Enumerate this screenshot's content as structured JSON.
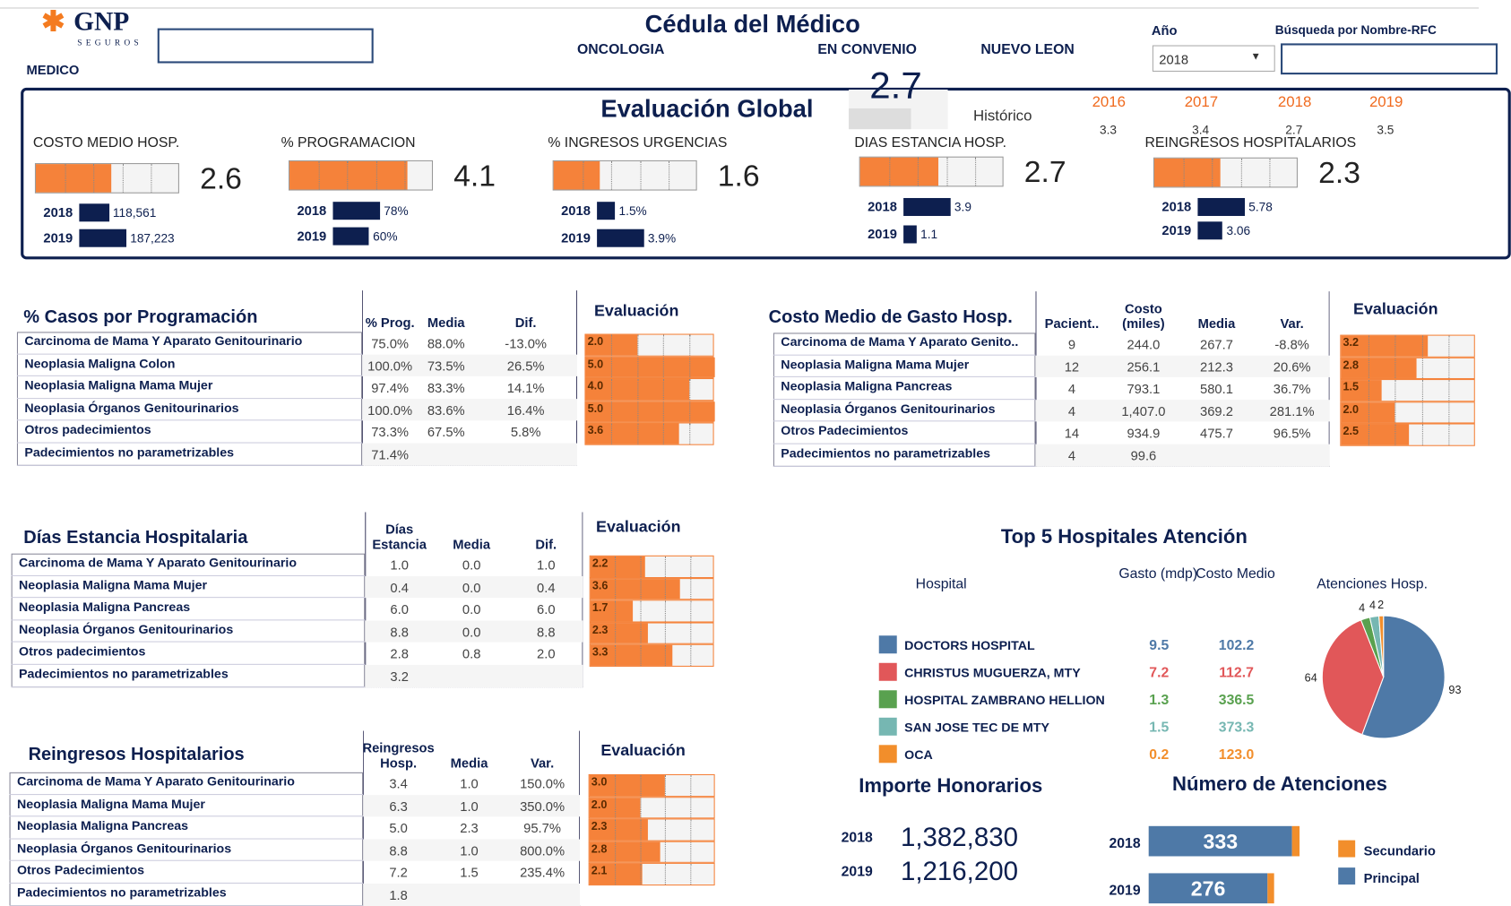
{
  "header": {
    "logo": "GNP",
    "logo_sub": "SEGUROS",
    "medico_label": "MEDICO",
    "title": "Cédula del Médico",
    "specialty": "ONCOLOGIA",
    "agreement": "EN CONVENIO",
    "state": "NUEVO LEON",
    "year_label": "Año",
    "year": "2018",
    "search_label": "Búsqueda por Nombre-RFC"
  },
  "global": {
    "title": "Evaluación Global",
    "score": 2.7,
    "history_label": "Histórico",
    "history": [
      {
        "year": "2016",
        "score": 3.3
      },
      {
        "year": "2017",
        "score": 3.4
      },
      {
        "year": "2018",
        "score": 2.7
      },
      {
        "year": "2019",
        "score": 3.5
      }
    ],
    "kpis": [
      {
        "name": "COSTO MEDIO HOSP.",
        "score": 2.6,
        "rows": [
          {
            "year": "2018",
            "value": {
              "value": 118561,
              "label": "118,561"
            }
          },
          {
            "year": "2019",
            "value": {
              "value": 187223,
              "label": "187,223"
            }
          }
        ]
      },
      {
        "name": "% PROGRAMACION",
        "score": 4.1,
        "rows": [
          {
            "year": "2018",
            "value": {
              "value": 78,
              "label": "78%"
            }
          },
          {
            "year": "2019",
            "value": {
              "value": 60,
              "label": "60%"
            }
          }
        ]
      },
      {
        "name": "% INGRESOS URGENCIAS",
        "score": 1.6,
        "rows": [
          {
            "year": "2018",
            "value": {
              "value": 1.5,
              "label": "1.5%"
            }
          },
          {
            "year": "2019",
            "value": {
              "value": 3.9,
              "label": "3.9%"
            }
          }
        ]
      },
      {
        "name": "DIAS ESTANCIA HOSP.",
        "score": 2.7,
        "rows": [
          {
            "year": "2018",
            "value": 3.9
          },
          {
            "year": "2019",
            "value": 1.1
          }
        ]
      },
      {
        "name": "REINGRESOS HOSPITALARIOS",
        "score": 2.3,
        "rows": [
          {
            "year": "2018",
            "value": 5.78
          },
          {
            "year": "2019",
            "value": 3.06
          }
        ]
      }
    ]
  },
  "tables": [
    {
      "title": "% Casos por Programación",
      "columns": [
        "% Prog.",
        "Media",
        "Dif."
      ],
      "eval_label": "Evaluación",
      "rows": [
        {
          "label": "Carcinoma de  Mama Y Aparato Genitourinario",
          "cells": [
            "75.0%",
            "88.0%",
            "-13.0%"
          ],
          "score": {
            "value": 2,
            "label": "2.0"
          }
        },
        {
          "label": "Neoplasia Maligna Colon",
          "cells": [
            "100.0%",
            "73.5%",
            "26.5%"
          ],
          "score": {
            "value": 5,
            "label": "5.0"
          }
        },
        {
          "label": "Neoplasia Maligna Mama Mujer",
          "cells": [
            "97.4%",
            "83.3%",
            "14.1%"
          ],
          "score": {
            "value": 4,
            "label": "4.0"
          }
        },
        {
          "label": "Neoplasia Órganos Genitourinarios",
          "cells": [
            "100.0%",
            "83.6%",
            "16.4%"
          ],
          "score": {
            "value": 5,
            "label": "5.0"
          }
        },
        {
          "label": "Otros padecimientos",
          "cells": [
            "73.3%",
            "67.5%",
            "5.8%"
          ],
          "score": 3.6
        },
        {
          "label": "Padecimientos no parametrizables",
          "cells": [
            "71.4%"
          ]
        }
      ]
    },
    {
      "title": "Costo Medio de Gasto Hosp.",
      "columns": [
        "Pacient..",
        "Costo (miles)",
        "Media",
        "Var."
      ],
      "eval_label": "Evaluación",
      "rows": [
        {
          "label": "Carcinoma de  Mama Y Aparato Genito..",
          "cells": [
            "9",
            "244.0",
            "267.7",
            "-8.8%"
          ],
          "score": 3.2
        },
        {
          "label": "Neoplasia Maligna Mama Mujer",
          "cells": [
            "12",
            "256.1",
            "212.3",
            "20.6%"
          ],
          "score": 2.8
        },
        {
          "label": "Neoplasia Maligna Pancreas",
          "cells": [
            "4",
            "793.1",
            "580.1",
            "36.7%"
          ],
          "score": 1.5
        },
        {
          "label": "Neoplasia Órganos Genitourinarios",
          "cells": [
            "4",
            "1,407.0",
            "369.2",
            "281.1%"
          ],
          "score": {
            "value": 2,
            "label": "2.0"
          }
        },
        {
          "label": "Otros Padecimientos",
          "cells": [
            "14",
            "934.9",
            "475.7",
            "96.5%"
          ],
          "score": 2.5
        },
        {
          "label": "Padecimientos no parametrizables",
          "cells": [
            "4",
            "99.6"
          ]
        }
      ]
    },
    {
      "title": "Días Estancia Hospitalaria",
      "columns": [
        "Días Estancia",
        "Media",
        "Dif."
      ],
      "eval_label": "Evaluación",
      "rows": [
        {
          "label": "Carcinoma de  Mama Y Aparato Genitourinario",
          "cells": [
            "1.0",
            "0.0",
            "1.0"
          ],
          "score": 2.2
        },
        {
          "label": "Neoplasia Maligna Mama Mujer",
          "cells": [
            "0.4",
            "0.0",
            "0.4"
          ],
          "score": 3.6
        },
        {
          "label": "Neoplasia Maligna Pancreas",
          "cells": [
            "6.0",
            "0.0",
            "6.0"
          ],
          "score": 1.7
        },
        {
          "label": "Neoplasia Órganos Genitourinarios",
          "cells": [
            "8.8",
            "0.0",
            "8.8"
          ],
          "score": 2.3
        },
        {
          "label": "Otros padecimientos",
          "cells": [
            "2.8",
            "0.8",
            "2.0"
          ],
          "score": 3.3
        },
        {
          "label": "Padecimientos no parametrizables",
          "cells": [
            "3.2"
          ]
        }
      ]
    },
    {
      "title": "Reingresos Hospitalarios",
      "columns": [
        "Reingresos Hosp.",
        "Media",
        "Var."
      ],
      "eval_label": "Evaluación",
      "rows": [
        {
          "label": "Carcinoma de  Mama Y Aparato Genitourinario",
          "cells": [
            "3.4",
            "1.0",
            "150.0%"
          ],
          "score": {
            "value": 3,
            "label": "3.0"
          }
        },
        {
          "label": "Neoplasia Maligna Mama Mujer",
          "cells": [
            "6.3",
            "1.0",
            "350.0%"
          ],
          "score": {
            "value": 2,
            "label": "2.0"
          }
        },
        {
          "label": "Neoplasia Maligna Pancreas",
          "cells": [
            "5.0",
            "2.3",
            "95.7%"
          ],
          "score": 2.3
        },
        {
          "label": "Neoplasia Órganos Genitourinarios",
          "cells": [
            "8.8",
            "1.0",
            "800.0%"
          ],
          "score": 2.8
        },
        {
          "label": "Otros Padecimientos",
          "cells": [
            "7.2",
            "1.5",
            "235.4%"
          ],
          "score": 2.1
        },
        {
          "label": "Padecimientos no parametrizables",
          "cells": [
            "1.8"
          ]
        }
      ]
    }
  ],
  "hospitals": {
    "title": "Top 5 Hospitales Atención",
    "columns": [
      "Hospital",
      "Gasto (mdp)",
      "Costo Medio"
    ],
    "pie_title": "Atenciones Hosp.",
    "rows": [
      {
        "name": "DOCTORS HOSPITAL",
        "color": "#4e79a7",
        "spend": "9.5",
        "cost": "102.2",
        "visits": 93
      },
      {
        "name": "CHRISTUS MUGUERZA, MTY",
        "color": "#e15759",
        "spend": "7.2",
        "cost": "112.7",
        "visits": 64
      },
      {
        "name": "HOSPITAL ZAMBRANO HELLION",
        "color": "#59a14f",
        "spend": "1.3",
        "cost": "336.5",
        "visits": 4
      },
      {
        "name": "SAN JOSE TEC DE MTY",
        "color": "#76b7b2",
        "spend": "1.5",
        "cost": "373.3",
        "visits": 4
      },
      {
        "name": "OCA",
        "color": "#f28e2b",
        "spend": "0.2",
        "cost": "123.0",
        "visits": 2
      }
    ]
  },
  "fees": {
    "title": "Importe Honorarios",
    "rows": [
      {
        "year": "2018",
        "amount": "1,382,830"
      },
      {
        "year": "2019",
        "amount": "1,216,200"
      }
    ]
  },
  "chart_data": {
    "type": "bar",
    "title": "Número de Atenciones",
    "categories": [
      "2018",
      "2019"
    ],
    "series": [
      {
        "name": "Principal",
        "color": "#4e79a7",
        "values": [
          333,
          276
        ]
      },
      {
        "name": "Secundario",
        "color": "#f28e2b",
        "values": [
          17,
          15
        ]
      }
    ]
  }
}
